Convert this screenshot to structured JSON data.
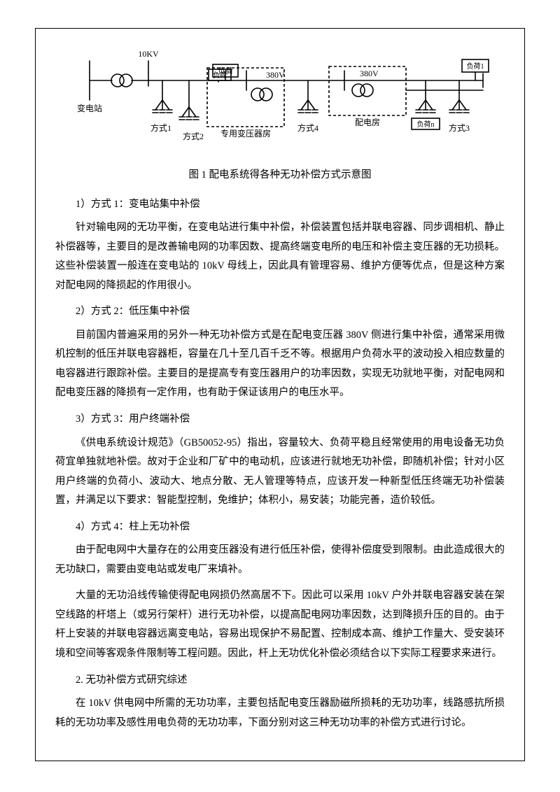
{
  "diagram": {
    "labels": {
      "substation": "变电站",
      "voltage_10kv": "10KV",
      "voltage_380v_1": "380V",
      "voltage_380v_2": "380V",
      "load": "负荷",
      "load1": "负荷1",
      "loadn": "负荷n",
      "dedicated_room": "专用变压器房",
      "dist_room": "配电房",
      "mode1": "方式1",
      "mode2": "方式2",
      "mode3": "方式3",
      "mode4": "方式4"
    },
    "style": {
      "stroke_width": 1.6,
      "stroke_color": "#000000",
      "font_size": 12,
      "dash_pattern": "4,3"
    }
  },
  "caption": "图 1 配电系统得各种无功补偿方式示意图",
  "sections": [
    {
      "heading": "1）方式 1：变电站集中补偿",
      "paras": [
        "针对输电网的无功平衡，在变电站进行集中补偿，补偿装置包括并联电容器、同步调相机、静止补偿器等，主要目的是改善输电网的功率因数、提高终端变电所的电压和补偿主变压器的无功损耗。这些补偿装置一般连在变电站的 10kV 母线上，因此具有管理容易、维护方便等优点，但是这种方案对配电网的降损起的作用很小。"
      ]
    },
    {
      "heading": "2）方式 2：低压集中补偿",
      "paras": [
        "目前国内普遍采用的另外一种无功补偿方式是在配电变压器 380V 侧进行集中补偿，通常采用微机控制的低压并联电容器柜，容量在几十至几百千乏不等。根据用户负荷水平的波动投入相应数量的电容器进行跟踪补偿。主要目的是提高专有变压器用户的功率因数，实现无功就地平衡，对配电网和配电变压器的降损有一定作用，也有助于保证该用户的电压水平。"
      ]
    },
    {
      "heading": "3）方式 3：用户终端补偿",
      "paras": [
        "《供电系统设计规范》（GB50052-95）指出，容量较大、负荷平稳且经常使用的用电设备无功负荷宜单独就地补偿。故对于企业和厂矿中的电动机，应该进行就地无功补偿，即随机补偿；针对小区用户终端的负荷小、波动大、地点分散、无人管理等特点，应该开发一种新型低压终端无功补偿装置，并满足以下要求：智能型控制，免维护；体积小，易安装；功能完善，造价较低。"
      ]
    },
    {
      "heading": "4）方式 4：柱上无功补偿",
      "paras": [
        "由于配电网中大量存在的公用变压器没有进行低压补偿，使得补偿度受到限制。由此造成很大的无功缺口，需要由变电站或发电厂来填补。",
        "大量的无功沿线传输使得配电网损仍然高居不下。因此可以采用 10kV 户外并联电容器安装在架空线路的杆塔上（或另行架杆）进行无功补偿，以提高配电网功率因数，达到降损升压的目的。由于杆上安装的并联电容器远离变电站，容易出现保护不易配置、控制成本高、维护工作量大、受安装环境和空间等客观条件限制等工程问题。因此，杆上无功优化补偿必须结合以下实际工程要求来进行。"
      ]
    }
  ],
  "section2": {
    "heading": "2. 无功补偿方式研究综述",
    "para": "在 10kV 供电网中所需的无功功率，主要包括配电变压器励磁所损耗的无功功率，线路感抗所损耗的无功功率及感性用电负荷的无功功率，下面分别对这三种无功功率的补偿方式进行讨论。"
  }
}
